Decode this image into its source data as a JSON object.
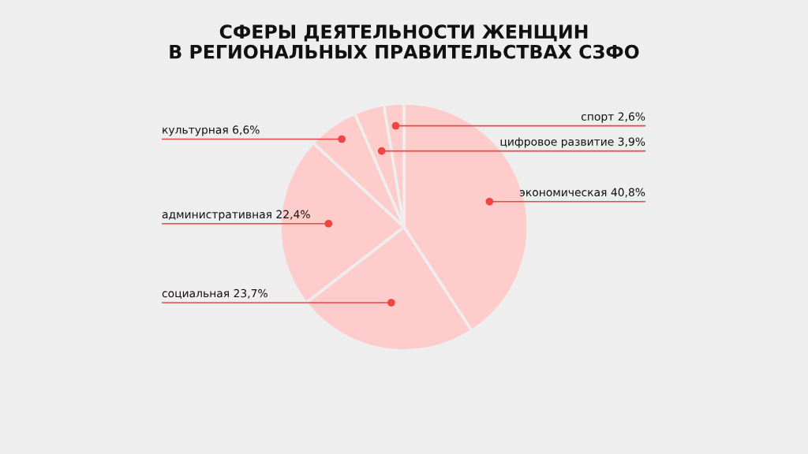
{
  "chart_data": {
    "type": "pie",
    "title": "СФЕРЫ ДЕЯТЕЛЬНОСТИ ЖЕНЩИН\nВ РЕГИОНАЛЬНЫХ ПРАВИТЕЛЬСТВАХ СЗФО",
    "categories": [
      "экономическая",
      "социальная",
      "административная",
      "культурная",
      "цифровое развитие",
      "спорт"
    ],
    "values": [
      40.8,
      23.7,
      22.4,
      6.6,
      3.9,
      2.6
    ],
    "value_labels": [
      "40,8%",
      "23,7%",
      "22,4%",
      "6,6%",
      "3,9%",
      "2,6%"
    ],
    "colors": [
      "#ffcccc",
      "#ffcccc",
      "#ffcccc",
      "#ffcccc",
      "#ffcccc",
      "#ffcccc"
    ],
    "legend": false
  }
}
